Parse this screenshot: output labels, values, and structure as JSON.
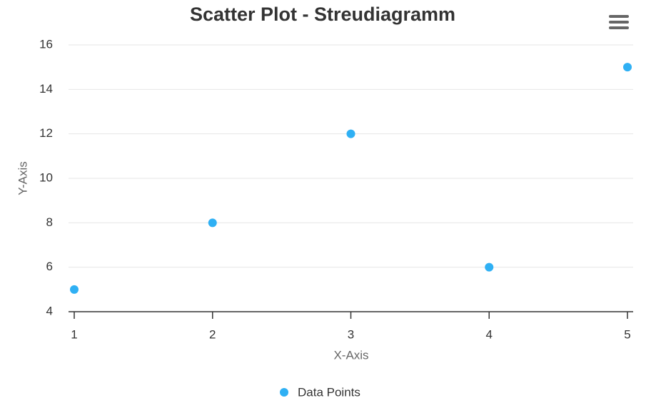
{
  "chart_data": {
    "type": "scatter",
    "title": "Scatter Plot - Streudiagramm",
    "x_label": "X-Axis",
    "y_label": "Y-Axis",
    "x": [
      1,
      2,
      3,
      4,
      5
    ],
    "series": [
      {
        "name": "Data Points",
        "color": "#2fb0f4",
        "values": [
          5,
          8,
          12,
          6,
          15
        ]
      }
    ],
    "xlim": [
      1,
      5
    ],
    "xticks": [
      1,
      2,
      3,
      4,
      5
    ],
    "ylim": [
      4,
      16
    ],
    "yticks": [
      4,
      6,
      8,
      10,
      12,
      14,
      16
    ],
    "grid": true,
    "legend": "bottom"
  }
}
